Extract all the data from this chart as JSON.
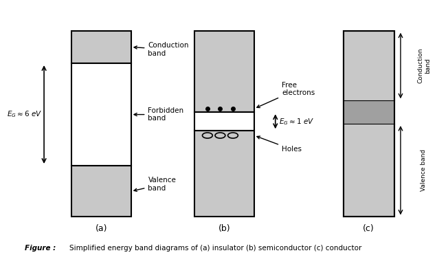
{
  "bg_color": "#ffffff",
  "gray_fill": "#c8c8c8",
  "dark_gray_fill": "#a0a0a0",
  "band_outline": "#000000",
  "fig_caption": "Figure : Simplified energy band diagrams of (a) insulator (b) semiconductor (c) conductor",
  "label_a": "(a)",
  "label_b": "(b)",
  "label_c": "(c)",
  "eg_insulator": "$E_G \\approx 6$ eV",
  "eg_semiconductor": "$E_G \\approx 1$ eV",
  "conduction_band": "Conduction\nband",
  "valence_band": "Valence\nband",
  "forbidden_band": "Forbidden\nband",
  "free_electrons": "Free\nelectrons",
  "holes_label": "Holes"
}
